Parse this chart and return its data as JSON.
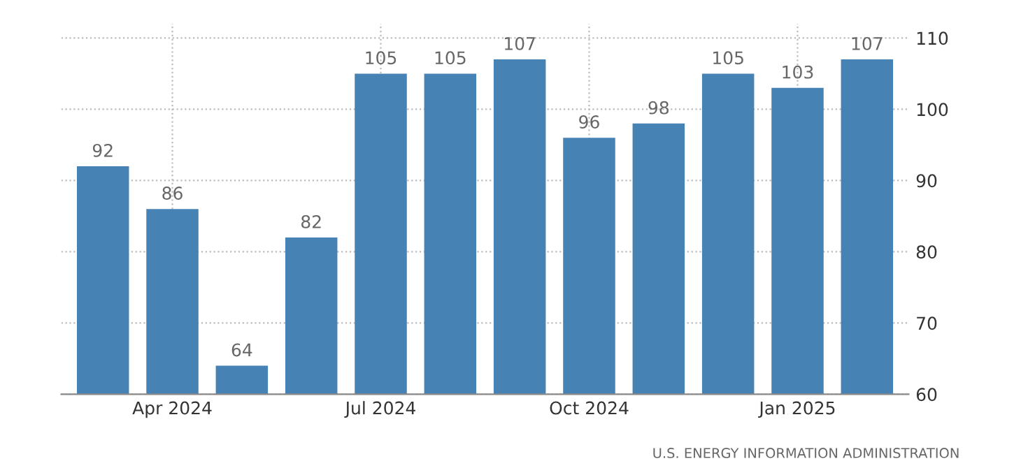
{
  "chart_data": {
    "type": "bar",
    "categories": [
      null,
      "Apr 2024",
      null,
      null,
      "Jul 2024",
      null,
      null,
      "Oct 2024",
      null,
      null,
      "Jan 2025",
      null
    ],
    "values": [
      92,
      86,
      64,
      82,
      105,
      105,
      107,
      96,
      98,
      105,
      103,
      107
    ],
    "color": "#4682b4",
    "ylim": [
      60,
      112
    ],
    "yticks": [
      60,
      70,
      80,
      90,
      100,
      110
    ],
    "grid": true,
    "data_labels": true,
    "annotations": [
      "U.S. ENERGY INFORMATION ADMINISTRATION"
    ]
  }
}
